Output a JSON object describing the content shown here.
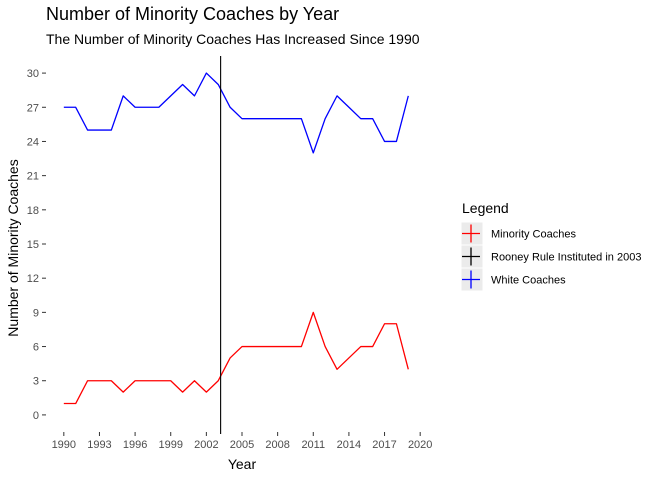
{
  "chart_data": {
    "type": "line",
    "title": "Number of Minority Coaches by Year",
    "subtitle": "The Number of Minority Coaches Has Increased Since 1990",
    "xlabel": "Year",
    "ylabel": "Number of Minority Coaches",
    "xlim": [
      1990,
      2020
    ],
    "ylim": [
      0,
      30
    ],
    "x_ticks": [
      1990,
      1993,
      1996,
      1999,
      2002,
      2005,
      2008,
      2011,
      2014,
      2017,
      2020
    ],
    "y_ticks": [
      0,
      3,
      6,
      9,
      12,
      15,
      18,
      21,
      24,
      27,
      30
    ],
    "grid": false,
    "legend": {
      "title": "Legend",
      "placement": "right",
      "entries": [
        "Minority Coaches",
        "Rooney Rule Instituted in 2003",
        "White Coaches"
      ]
    },
    "x": [
      1990,
      1991,
      1992,
      1993,
      1994,
      1995,
      1996,
      1997,
      1998,
      1999,
      2000,
      2001,
      2002,
      2003,
      2004,
      2005,
      2006,
      2007,
      2008,
      2009,
      2010,
      2011,
      2012,
      2013,
      2014,
      2015,
      2016,
      2017,
      2018,
      2019
    ],
    "series": [
      {
        "name": "Minority Coaches",
        "color": "#ff0000",
        "values": [
          1,
          1,
          3,
          3,
          3,
          2,
          3,
          3,
          3,
          3,
          2,
          3,
          2,
          3,
          5,
          6,
          6,
          6,
          6,
          6,
          6,
          9,
          6,
          4,
          5,
          6,
          6,
          8,
          8,
          4
        ]
      },
      {
        "name": "White Coaches",
        "color": "#0000ff",
        "values": [
          27,
          27,
          25,
          25,
          25,
          28,
          27,
          27,
          27,
          28,
          29,
          28,
          30,
          29,
          27,
          26,
          26,
          26,
          26,
          26,
          26,
          23,
          26,
          28,
          27,
          26,
          26,
          24,
          24,
          28
        ]
      }
    ],
    "vline": {
      "name": "Rooney Rule Instituted in 2003",
      "x": 2003.2,
      "color": "#000000"
    }
  }
}
